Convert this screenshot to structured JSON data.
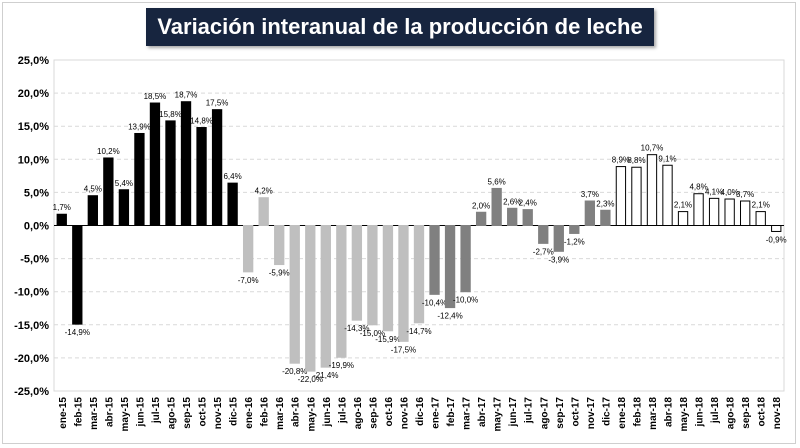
{
  "chart_data": {
    "type": "bar",
    "title": "Variación interanual de la producción de leche",
    "xlabel": "",
    "ylabel": "",
    "ylim": [
      -25,
      25
    ],
    "yticks": [
      "-25,0%",
      "-20,0%",
      "-15,0%",
      "-10,0%",
      "-5,0%",
      "0,0%",
      "5,0%",
      "10,0%",
      "15,0%",
      "20,0%",
      "25,0%"
    ],
    "grid": true,
    "categories": [
      "ene-15",
      "feb-15",
      "mar-15",
      "abr-15",
      "may-15",
      "jun-15",
      "jul-15",
      "ago-15",
      "sep-15",
      "oct-15",
      "nov-15",
      "dic-15",
      "ene-16",
      "feb-16",
      "mar-16",
      "abr-16",
      "may-16",
      "jun-16",
      "jul-16",
      "ago-16",
      "sep-16",
      "oct-16",
      "nov-16",
      "dic-16",
      "ene-17",
      "feb-17",
      "mar-17",
      "abr-17",
      "may-17",
      "jun-17",
      "jul-17",
      "ago-17",
      "sep-17",
      "oct-17",
      "nov-17",
      "dic-17",
      "ene-18",
      "feb-18",
      "mar-18",
      "abr-18",
      "may-18",
      "jun-18",
      "jul-18",
      "ago-18",
      "sep-18",
      "oct-18",
      "nov-18"
    ],
    "series": [
      {
        "values": [
          1.7,
          -14.9,
          4.5,
          10.2,
          5.4,
          13.9,
          18.5,
          15.8,
          18.7,
          14.8,
          17.5,
          6.4,
          -7.0,
          4.2,
          -5.9,
          -20.8,
          -22.0,
          -21.4,
          -19.9,
          -14.3,
          -15.0,
          -15.9,
          -17.5,
          -14.7,
          -10.4,
          -12.4,
          -10.0,
          2.0,
          5.6,
          2.6,
          2.4,
          -2.7,
          -3.9,
          -1.2,
          3.7,
          2.3,
          8.9,
          8.8,
          10.7,
          9.1,
          2.1,
          4.8,
          4.1,
          4.0,
          3.7,
          2.1,
          -0.9
        ],
        "labels": [
          "1,7%",
          "-14,9%",
          "4,5%",
          "10,2%",
          "5,4%",
          "13,9%",
          "18,5%",
          "15,8%",
          "18,7%",
          "14,8%",
          "17,5%",
          "6,4%",
          "-7,0%",
          "4,2%",
          "-5,9%",
          "-20,8%",
          "-22,0%",
          "-21,4%",
          "-19,9%",
          "-14,3%",
          "-15,0%",
          "-15,9%",
          "-17,5%",
          "-14,7%",
          "-10,4%",
          "-12,4%",
          "-10,0%",
          "2,0%",
          "5,6%",
          "2,6%",
          "2,4%",
          "-2,7%",
          "-3,9%",
          "-1,2%",
          "3,7%",
          "2,3%",
          "8,9%",
          "8,8%",
          "10,7%",
          "9,1%",
          "2,1%",
          "4,8%",
          "4,1%",
          "4,0%",
          "3,7%",
          "2,1%",
          "-0,9%"
        ]
      }
    ],
    "year_styles": [
      {
        "fill": "#000000",
        "stroke": "#000000"
      },
      {
        "fill": "#bfbfbf",
        "stroke": "#bfbfbf"
      },
      {
        "fill": "#808080",
        "stroke": "#808080"
      },
      {
        "fill": "#ffffff",
        "stroke": "#000000"
      }
    ],
    "colors": {
      "title_bg": "#17253f",
      "title_text": "#ffffff",
      "grid": "#d9d9d9",
      "axis": "#000000"
    }
  }
}
